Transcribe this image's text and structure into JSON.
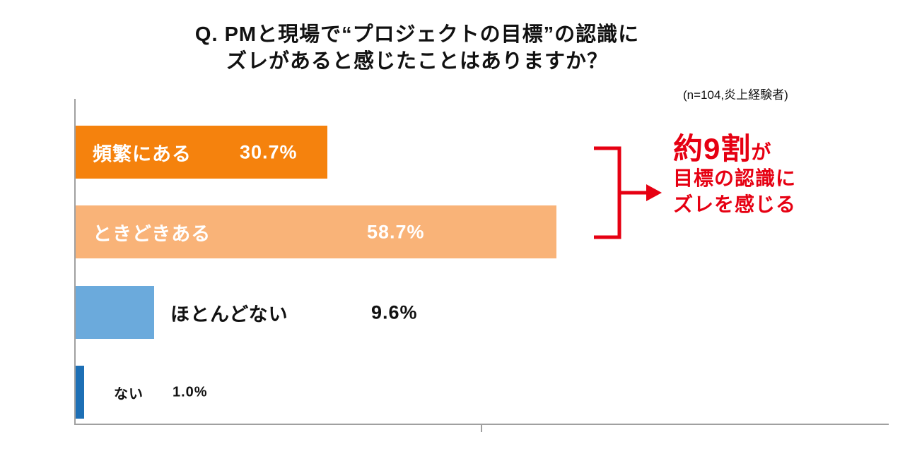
{
  "title": {
    "line1": "Q. PMと現場で“プロジェクトの目標”の認識に",
    "line2": "ズレがあると感じたことはありますか？"
  },
  "note": "(n=104,炎上経験者)",
  "chart_data": {
    "type": "bar",
    "orientation": "horizontal",
    "title": "PMと現場でプロジェクトの目標の認識にズレがあると感じたことはありますか？",
    "sample_note": "(n=104,炎上経験者)",
    "categories": [
      "頻繁にある",
      "ときどきある",
      "ほとんどない",
      "ない"
    ],
    "values": [
      30.7,
      58.7,
      9.6,
      1.0
    ],
    "value_labels": [
      "30.7%",
      "58.7%",
      "9.6%",
      "1.0%"
    ],
    "bar_colors": [
      "#f5820d",
      "#f9b378",
      "#6baadc",
      "#1d6fb5"
    ],
    "label_placement": [
      "inside",
      "inside",
      "outside",
      "outside"
    ],
    "xlim": [
      0,
      100
    ],
    "grid": false,
    "legend": "none"
  },
  "annotation": {
    "highlight": "約9割",
    "suffix": "が",
    "line2": "目標の認識に",
    "line3": "ズレを感じる",
    "color": "#e60012"
  }
}
